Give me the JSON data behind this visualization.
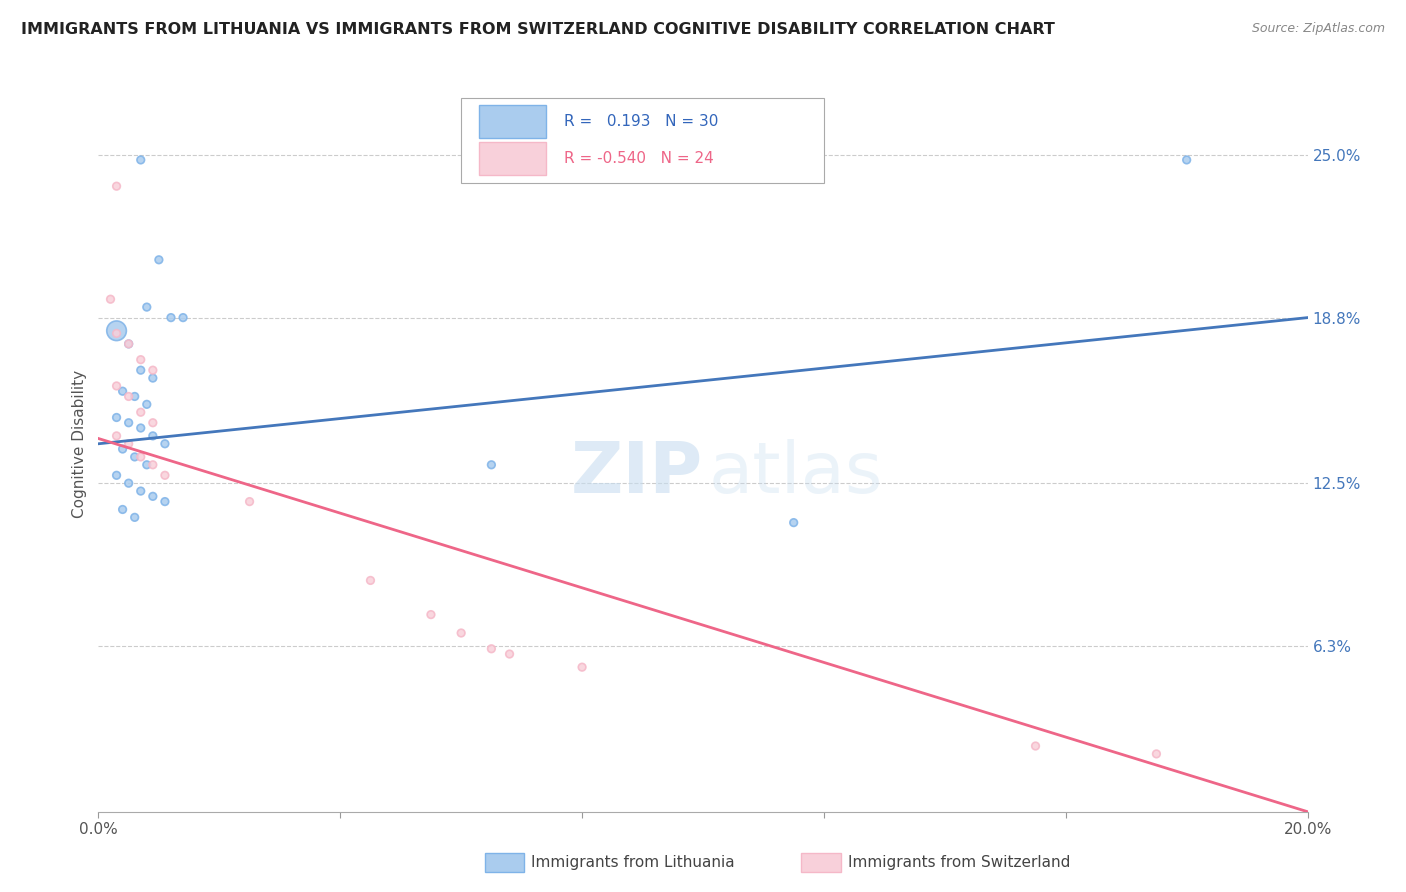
{
  "title": "IMMIGRANTS FROM LITHUANIA VS IMMIGRANTS FROM SWITZERLAND COGNITIVE DISABILITY CORRELATION CHART",
  "source_text": "Source: ZipAtlas.com",
  "ylabel": "Cognitive Disability",
  "x_min": 0.0,
  "x_max": 0.2,
  "y_min": 0.0,
  "y_max": 0.28,
  "right_ytick_labels": [
    "25.0%",
    "18.8%",
    "12.5%",
    "6.3%"
  ],
  "right_ytick_values": [
    0.25,
    0.188,
    0.125,
    0.063
  ],
  "xtick_labels": [
    "0.0%",
    "",
    "",
    "",
    "",
    "20.0%"
  ],
  "xtick_values": [
    0.0,
    0.04,
    0.08,
    0.12,
    0.16,
    0.2
  ],
  "grid_color": "#cccccc",
  "background_color": "#ffffff",
  "legend_R_blue": "0.193",
  "legend_N_blue": "30",
  "legend_R_pink": "-0.540",
  "legend_N_pink": "24",
  "blue_color": "#7fb3e8",
  "pink_color": "#f5b8c8",
  "blue_fill": "#aaccee",
  "pink_fill": "#f8d0da",
  "blue_line_color": "#4477bb",
  "pink_line_color": "#ee6688",
  "watermark_zip": "ZIP",
  "watermark_atlas": "atlas",
  "blue_trend_x": [
    0.0,
    0.2
  ],
  "blue_trend_y": [
    0.14,
    0.188
  ],
  "pink_trend_x": [
    0.0,
    0.2
  ],
  "pink_trend_y": [
    0.142,
    0.0
  ],
  "lithuania_points": [
    [
      0.007,
      0.248
    ],
    [
      0.01,
      0.21
    ],
    [
      0.008,
      0.192
    ],
    [
      0.012,
      0.188
    ],
    [
      0.014,
      0.188
    ],
    [
      0.003,
      0.183
    ],
    [
      0.005,
      0.178
    ],
    [
      0.007,
      0.168
    ],
    [
      0.009,
      0.165
    ],
    [
      0.004,
      0.16
    ],
    [
      0.006,
      0.158
    ],
    [
      0.008,
      0.155
    ],
    [
      0.003,
      0.15
    ],
    [
      0.005,
      0.148
    ],
    [
      0.007,
      0.146
    ],
    [
      0.009,
      0.143
    ],
    [
      0.011,
      0.14
    ],
    [
      0.004,
      0.138
    ],
    [
      0.006,
      0.135
    ],
    [
      0.008,
      0.132
    ],
    [
      0.003,
      0.128
    ],
    [
      0.005,
      0.125
    ],
    [
      0.007,
      0.122
    ],
    [
      0.009,
      0.12
    ],
    [
      0.011,
      0.118
    ],
    [
      0.004,
      0.115
    ],
    [
      0.006,
      0.112
    ],
    [
      0.065,
      0.132
    ],
    [
      0.115,
      0.11
    ],
    [
      0.18,
      0.248
    ]
  ],
  "lithuania_sizes": [
    30,
    30,
    30,
    30,
    30,
    200,
    30,
    30,
    30,
    30,
    30,
    30,
    30,
    30,
    30,
    30,
    30,
    30,
    30,
    30,
    30,
    30,
    30,
    30,
    30,
    30,
    30,
    30,
    30,
    30
  ],
  "switzerland_points": [
    [
      0.003,
      0.238
    ],
    [
      0.002,
      0.195
    ],
    [
      0.003,
      0.182
    ],
    [
      0.005,
      0.178
    ],
    [
      0.007,
      0.172
    ],
    [
      0.009,
      0.168
    ],
    [
      0.003,
      0.162
    ],
    [
      0.005,
      0.158
    ],
    [
      0.007,
      0.152
    ],
    [
      0.009,
      0.148
    ],
    [
      0.003,
      0.143
    ],
    [
      0.005,
      0.14
    ],
    [
      0.007,
      0.135
    ],
    [
      0.009,
      0.132
    ],
    [
      0.011,
      0.128
    ],
    [
      0.025,
      0.118
    ],
    [
      0.045,
      0.088
    ],
    [
      0.055,
      0.075
    ],
    [
      0.06,
      0.068
    ],
    [
      0.08,
      0.055
    ],
    [
      0.065,
      0.062
    ],
    [
      0.068,
      0.06
    ],
    [
      0.155,
      0.025
    ],
    [
      0.175,
      0.022
    ]
  ],
  "switzerland_sizes": [
    30,
    30,
    30,
    30,
    30,
    30,
    30,
    30,
    30,
    30,
    30,
    30,
    30,
    30,
    30,
    30,
    30,
    30,
    30,
    30,
    30,
    30,
    30,
    30
  ]
}
